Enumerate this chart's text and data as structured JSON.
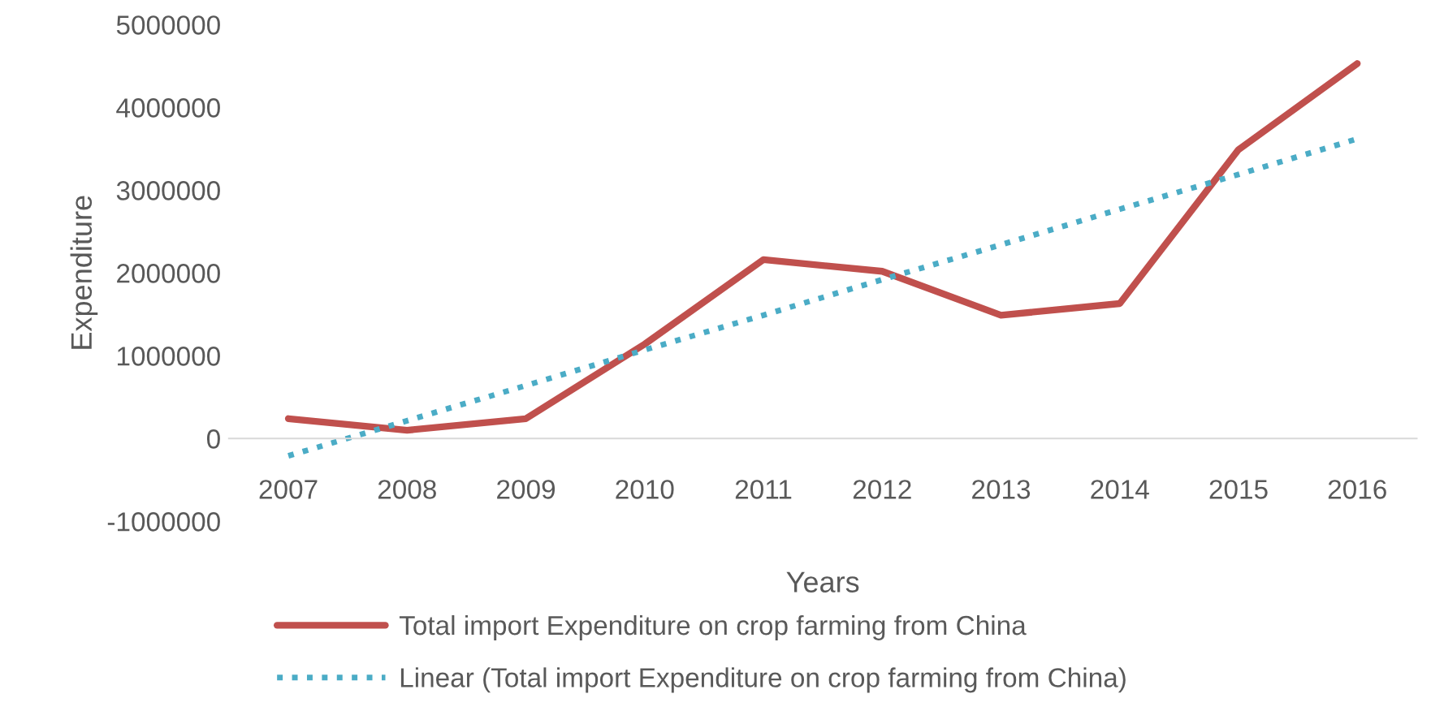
{
  "chart_data": {
    "type": "line",
    "xlabel": "Years",
    "ylabel": "Expenditure",
    "categories": [
      "2007",
      "2008",
      "2009",
      "2010",
      "2011",
      "2012",
      "2013",
      "2014",
      "2015",
      "2016"
    ],
    "series": [
      {
        "name": "Total import Expenditure on crop farming from China",
        "color": "#c0504d",
        "values": [
          240000,
          100000,
          240000,
          1140000,
          2160000,
          2020000,
          1490000,
          1630000,
          3490000,
          4530000
        ]
      },
      {
        "name": "Linear (Total import Expenditure on crop farming from China)",
        "type": "line",
        "line_style": "dotted",
        "color": "#4bacc6",
        "values": [
          -210000,
          215000,
          640000,
          1070000,
          1490000,
          1920000,
          2340000,
          2770000,
          3190000,
          3620000
        ]
      }
    ],
    "ylim": [
      -1000000,
      5000000
    ],
    "yticks": [
      -1000000,
      0,
      1000000,
      2000000,
      3000000,
      4000000,
      5000000
    ],
    "grid": false,
    "legend": "bottom",
    "marker": "none",
    "line_style": "solid"
  }
}
